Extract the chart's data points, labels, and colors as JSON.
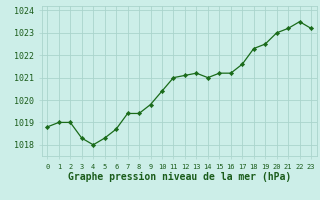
{
  "x": [
    0,
    1,
    2,
    3,
    4,
    5,
    6,
    7,
    8,
    9,
    10,
    11,
    12,
    13,
    14,
    15,
    16,
    17,
    18,
    19,
    20,
    21,
    22,
    23
  ],
  "y": [
    1018.8,
    1019.0,
    1019.0,
    1018.3,
    1018.0,
    1018.3,
    1018.7,
    1019.4,
    1019.4,
    1019.8,
    1020.4,
    1021.0,
    1021.1,
    1021.2,
    1021.0,
    1021.2,
    1021.2,
    1021.6,
    1022.3,
    1022.5,
    1023.0,
    1023.2,
    1023.5,
    1023.2
  ],
  "line_color": "#1a6b1a",
  "marker_color": "#1a6b1a",
  "bg_color": "#cceee8",
  "grid_color": "#aad4cc",
  "title": "Graphe pression niveau de la mer (hPa)",
  "ylim_min": 1017.5,
  "ylim_max": 1024.2,
  "yticks": [
    1018,
    1019,
    1020,
    1021,
    1022,
    1023,
    1024
  ],
  "tick_fontsize": 6.0,
  "title_fontsize": 7.0,
  "title_color": "#1a5c1a"
}
